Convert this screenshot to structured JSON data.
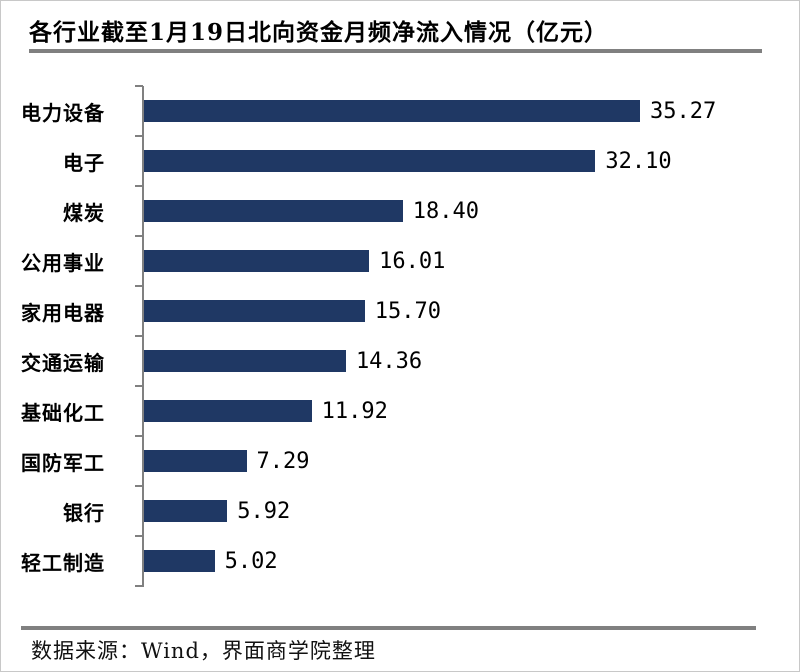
{
  "title": "各行业截至1月19日北向资金月频净流入情况（亿元）",
  "source": "数据来源：Wind，界面商学院整理",
  "colors": {
    "bar": "#1F3864",
    "axis": "#808080",
    "rule": "#808080",
    "text": "#000000",
    "frame_border": "#c8c8c8"
  },
  "chart_data": {
    "type": "bar",
    "orientation": "horizontal",
    "title": "各行业截至1月19日北向资金月频净流入情况（亿元）",
    "unit": "亿元",
    "categories": [
      "电力设备",
      "电子",
      "煤炭",
      "公用事业",
      "家用电器",
      "交通运输",
      "基础化工",
      "国防军工",
      "银行",
      "轻工制造"
    ],
    "values": [
      35.27,
      32.1,
      18.4,
      16.01,
      15.7,
      14.36,
      11.92,
      7.29,
      5.92,
      5.02
    ],
    "value_labels": [
      "35.27",
      "32.10",
      "18.40",
      "16.01",
      "15.70",
      "14.36",
      "11.92",
      "7.29",
      "5.92",
      "5.02"
    ],
    "xlim": [
      0,
      40
    ],
    "grid": false,
    "legend": false,
    "value_labels_position": "right-of-bar",
    "source": "数据来源：Wind，界面商学院整理"
  }
}
